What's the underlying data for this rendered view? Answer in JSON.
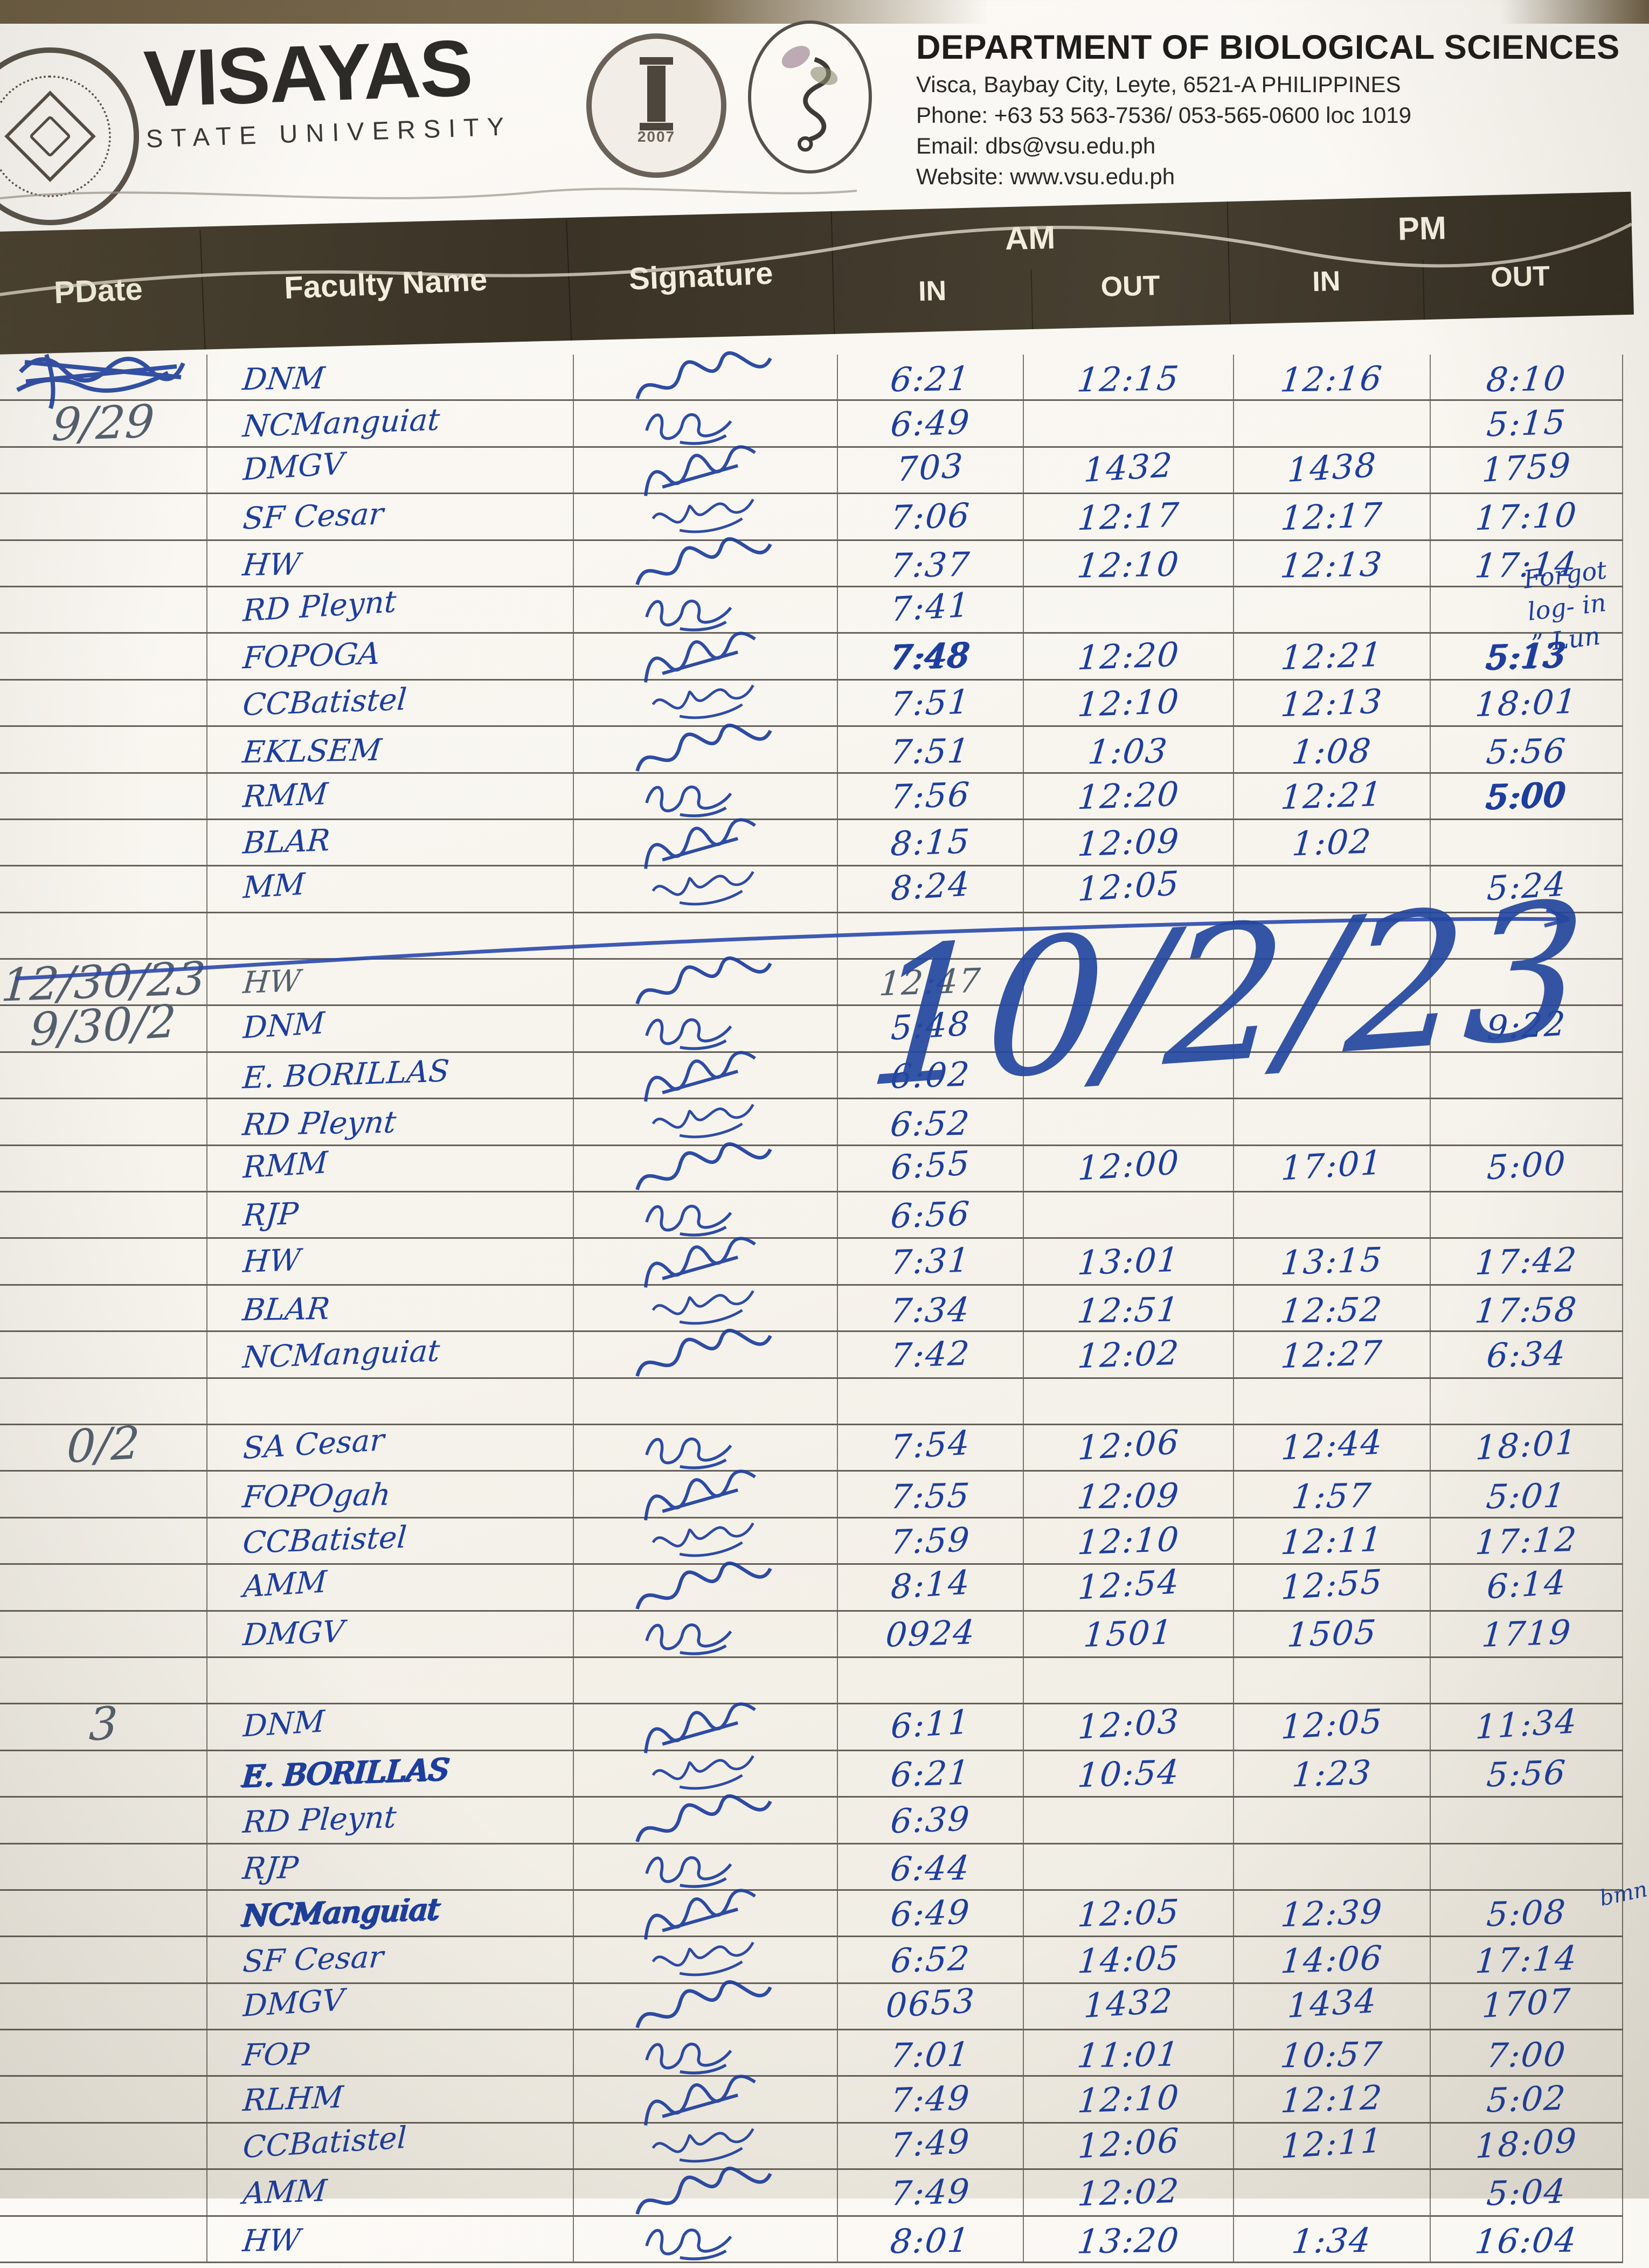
{
  "header": {
    "university": "VISAYAS",
    "university_sub": "STATE UNIVERSITY",
    "department": "DEPARTMENT OF BIOLOGICAL SCIENCES",
    "address": "Visca, Baybay City, Leyte, 6521-A PHILIPPINES",
    "phone": "Phone: +63 53 563-7536/ 053-565-0600 loc 1019",
    "email": "Email: dbs@vsu.edu.ph",
    "website": "Website: www.vsu.edu.ph",
    "logos": {
      "vsu_seal": "visayas-state-university-seal",
      "cas_seal": "college-of-arts-and-sciences-seal",
      "cas_year": "2007",
      "dbs_logo": "biological-sciences-emblem"
    }
  },
  "table": {
    "columns": {
      "pdate": "PDate",
      "faculty": "Faculty Name",
      "signature": "Signature",
      "am": "AM",
      "pm": "PM",
      "in": "IN",
      "out": "OUT"
    },
    "rows": [
      {
        "date": "",
        "name": "DNM",
        "sig": 1,
        "am_in": "6:21",
        "am_out": "12:15",
        "pm_in": "12:16",
        "pm_out": "8:10",
        "date_scribbled": true
      },
      {
        "date": "9/29",
        "pd_pencil": true,
        "name": "NCManguiat",
        "sig": 2,
        "am_in": "6:49",
        "am_out": "",
        "pm_in": "",
        "pm_out": "5:15"
      },
      {
        "date": "",
        "name": "DMGV",
        "sig": 3,
        "am_in": "703",
        "am_out": "1432",
        "pm_in": "1438",
        "pm_out": "1759"
      },
      {
        "date": "",
        "name": "SF Cesar",
        "sig": 4,
        "am_in": "7:06",
        "am_out": "12:17",
        "pm_in": "12:17",
        "pm_out": "17:10"
      },
      {
        "date": "",
        "name": "HW",
        "sig": 1,
        "am_in": "7:37",
        "am_out": "12:10",
        "pm_in": "12:13",
        "pm_out": "17:14"
      },
      {
        "date": "",
        "name": "RD Pleynt",
        "sig": 2,
        "am_in": "7:41",
        "am_out": "",
        "pm_in": "",
        "pm_out": ""
      },
      {
        "date": "",
        "name": "FOPOGA",
        "sig": 3,
        "am_in": "7:48",
        "am_out": "12:20",
        "pm_in": "12:21",
        "pm_out": "5:13",
        "blot": [
          "am_in",
          "pm_out"
        ]
      },
      {
        "date": "",
        "name": "CCBatistel",
        "sig": 4,
        "am_in": "7:51",
        "am_out": "12:10",
        "pm_in": "12:13",
        "pm_out": "18:01"
      },
      {
        "date": "",
        "name": "EKLSEM",
        "sig": 1,
        "am_in": "7:51",
        "am_out": "1:03",
        "pm_in": "1:08",
        "pm_out": "5:56"
      },
      {
        "date": "",
        "name": "RMM",
        "sig": 2,
        "am_in": "7:56",
        "am_out": "12:20",
        "pm_in": "12:21",
        "pm_out": "5:00",
        "blot": [
          "pm_out"
        ]
      },
      {
        "date": "",
        "name": "BLAR",
        "sig": 3,
        "am_in": "8:15",
        "am_out": "12:09",
        "pm_in": "1:02",
        "pm_out": ""
      },
      {
        "date": "",
        "name": "MM",
        "sig": 4,
        "am_in": "8:24",
        "am_out": "12:05",
        "pm_in": "",
        "pm_out": "5:24"
      },
      {
        "date": "",
        "name": "",
        "sig": 0,
        "am_in": "",
        "am_out": "",
        "pm_in": "",
        "pm_out": ""
      },
      {
        "date": "12/30/23",
        "pd_pencil": true,
        "pencil": true,
        "name": "HW",
        "sig": 1,
        "am_in": "12:47",
        "am_out": "",
        "pm_in": "",
        "pm_out": ""
      },
      {
        "date": "9/30/2",
        "pd_pencil": true,
        "name": "DNM",
        "sig": 2,
        "am_in": "5:48",
        "am_out": "",
        "pm_in": "",
        "pm_out": "9:22"
      },
      {
        "date": "",
        "name": "E. BORILLAS",
        "sig": 3,
        "am_in": "6:02",
        "am_out": "",
        "pm_in": "",
        "pm_out": ""
      },
      {
        "date": "",
        "name": "RD Pleynt",
        "sig": 4,
        "am_in": "6:52",
        "am_out": "",
        "pm_in": "",
        "pm_out": ""
      },
      {
        "date": "",
        "name": "RMM",
        "sig": 1,
        "am_in": "6:55",
        "am_out": "12:00",
        "pm_in": "17:01",
        "pm_out": "5:00"
      },
      {
        "date": "",
        "name": "RJP",
        "sig": 2,
        "am_in": "6:56",
        "am_out": "",
        "pm_in": "",
        "pm_out": ""
      },
      {
        "date": "",
        "name": "HW",
        "sig": 3,
        "am_in": "7:31",
        "am_out": "13:01",
        "pm_in": "13:15",
        "pm_out": "17:42"
      },
      {
        "date": "",
        "name": "BLAR",
        "sig": 4,
        "am_in": "7:34",
        "am_out": "12:51",
        "pm_in": "12:52",
        "pm_out": "17:58"
      },
      {
        "date": "",
        "name": "NCManguiat",
        "sig": 1,
        "am_in": "7:42",
        "am_out": "12:02",
        "pm_in": "12:27",
        "pm_out": "6:34"
      },
      {
        "date": "",
        "name": "",
        "sig": 0,
        "am_in": "",
        "am_out": "",
        "pm_in": "",
        "pm_out": ""
      },
      {
        "date": "0/2",
        "pd_pencil": true,
        "name": "SA Cesar",
        "sig": 2,
        "am_in": "7:54",
        "am_out": "12:06",
        "pm_in": "12:44",
        "pm_out": "18:01"
      },
      {
        "date": "",
        "name": "FOPOgah",
        "sig": 3,
        "am_in": "7:55",
        "am_out": "12:09",
        "pm_in": "1:57",
        "pm_out": "5:01"
      },
      {
        "date": "",
        "name": "CCBatistel",
        "sig": 4,
        "am_in": "7:59",
        "am_out": "12:10",
        "pm_in": "12:11",
        "pm_out": "17:12"
      },
      {
        "date": "",
        "name": "AMM",
        "sig": 1,
        "am_in": "8:14",
        "am_out": "12:54",
        "pm_in": "12:55",
        "pm_out": "6:14"
      },
      {
        "date": "",
        "name": "DMGV",
        "sig": 2,
        "am_in": "0924",
        "am_out": "1501",
        "pm_in": "1505",
        "pm_out": "1719"
      },
      {
        "date": "",
        "name": "",
        "sig": 0,
        "am_in": "",
        "am_out": "",
        "pm_in": "",
        "pm_out": ""
      },
      {
        "date": "3",
        "pd_pencil": true,
        "name": "DNM",
        "sig": 3,
        "am_in": "6:11",
        "am_out": "12:03",
        "pm_in": "12:05",
        "pm_out": "11:34"
      },
      {
        "date": "",
        "name": "E. BORILLAS",
        "sig": 4,
        "am_in": "6:21",
        "am_out": "10:54",
        "pm_in": "1:23",
        "pm_out": "5:56",
        "blot": [
          "name"
        ]
      },
      {
        "date": "",
        "name": "RD Pleynt",
        "sig": 1,
        "am_in": "6:39",
        "am_out": "",
        "pm_in": "",
        "pm_out": ""
      },
      {
        "date": "",
        "name": "RJP",
        "sig": 2,
        "am_in": "6:44",
        "am_out": "",
        "pm_in": "",
        "pm_out": ""
      },
      {
        "date": "",
        "name": "NCManguiat",
        "sig": 3,
        "am_in": "6:49",
        "am_out": "12:05",
        "pm_in": "12:39",
        "pm_out": "5:08",
        "blot": [
          "name"
        ]
      },
      {
        "date": "",
        "name": "SF Cesar",
        "sig": 4,
        "am_in": "6:52",
        "am_out": "14:05",
        "pm_in": "14:06",
        "pm_out": "17:14"
      },
      {
        "date": "",
        "name": "DMGV",
        "sig": 1,
        "am_in": "0653",
        "am_out": "1432",
        "pm_in": "1434",
        "pm_out": "1707"
      },
      {
        "date": "",
        "name": "FOP",
        "sig": 2,
        "am_in": "7:01",
        "am_out": "11:01",
        "pm_in": "10:57",
        "pm_out": "7:00"
      },
      {
        "date": "",
        "name": "RLHM",
        "sig": 3,
        "am_in": "7:49",
        "am_out": "12:10",
        "pm_in": "12:12",
        "pm_out": "5:02"
      },
      {
        "date": "",
        "name": "CCBatistel",
        "sig": 4,
        "am_in": "7:49",
        "am_out": "12:06",
        "pm_in": "12:11",
        "pm_out": "18:09"
      },
      {
        "date": "",
        "name": "AMM",
        "sig": 1,
        "am_in": "7:49",
        "am_out": "12:02",
        "pm_in": "",
        "pm_out": "5:04"
      },
      {
        "date": "",
        "name": "HW",
        "sig": 2,
        "am_in": "8:01",
        "am_out": "13:20",
        "pm_in": "1:34",
        "pm_out": "16:04"
      }
    ]
  },
  "annotations": {
    "big_date": "10/2/23",
    "margin_note": [
      "Forgot",
      "log- in",
      "” Lun"
    ],
    "margin_note_2": "bmn"
  },
  "colors": {
    "ink": "#1d3e9e",
    "pencil": "#55606e",
    "band": "#3a3326",
    "rule_line": "#2d281f",
    "paper": "#f6f3ec"
  }
}
